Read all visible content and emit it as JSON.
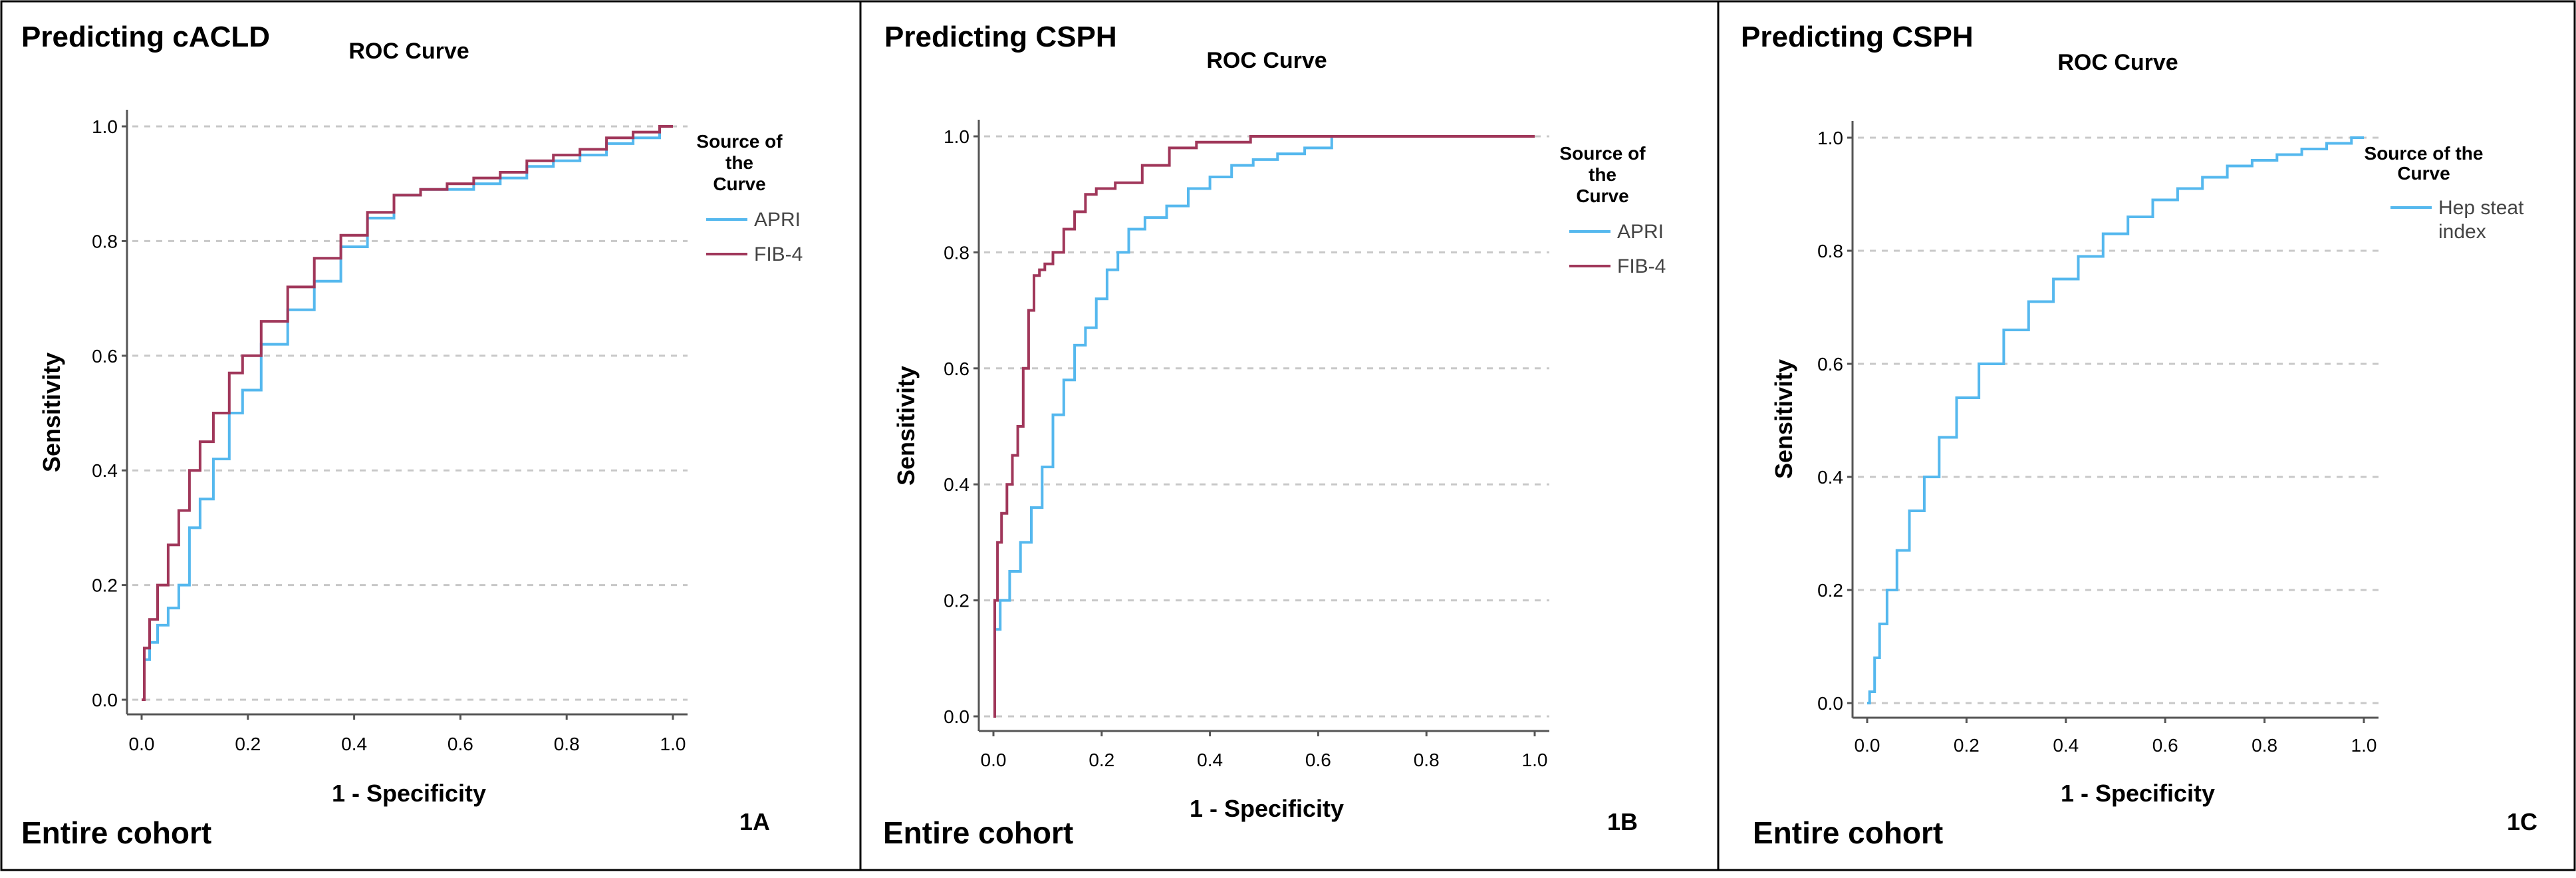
{
  "colors": {
    "apri": "#55b8ee",
    "fib4": "#a0375a",
    "hep": "#55b8ee",
    "grid": "#c8c8c8",
    "border": "#000000"
  },
  "panels": [
    {
      "heading": "Predicting cACLD",
      "footer": "Entire cohort",
      "panel_id": "1A"
    },
    {
      "heading": "Predicting CSPH",
      "footer": "Entire cohort",
      "panel_id": "1B"
    },
    {
      "heading": "Predicting CSPH",
      "footer": "Entire cohort",
      "panel_id": "1C"
    }
  ],
  "chart_data": [
    {
      "type": "line",
      "title": "ROC Curve",
      "xlabel": "1 - Specificity",
      "ylabel": "Sensitivity",
      "xlim": [
        0,
        1
      ],
      "ylim": [
        0,
        1
      ],
      "x_ticks": [
        "0.0",
        "0.2",
        "0.4",
        "0.6",
        "0.8",
        "1.0"
      ],
      "y_ticks": [
        "0.0",
        "0.2",
        "0.4",
        "0.6",
        "0.8",
        "1.0"
      ],
      "grid": "horizontal dashed",
      "legend_title": [
        "Source of",
        "the",
        "Curve"
      ],
      "legend_position": "right",
      "series": [
        {
          "name": "APRI",
          "color": "#55b8ee",
          "x": [
            0,
            0.01,
            0.02,
            0.04,
            0.06,
            0.08,
            0.1,
            0.12,
            0.15,
            0.18,
            0.2,
            0.25,
            0.3,
            0.35,
            0.4,
            0.45,
            0.5,
            0.55,
            0.6,
            0.65,
            0.7,
            0.75,
            0.8,
            0.85,
            0.9,
            0.95,
            1.0
          ],
          "y": [
            0,
            0.07,
            0.1,
            0.13,
            0.16,
            0.2,
            0.3,
            0.35,
            0.42,
            0.5,
            0.54,
            0.62,
            0.68,
            0.73,
            0.79,
            0.84,
            0.88,
            0.89,
            0.89,
            0.9,
            0.91,
            0.93,
            0.94,
            0.95,
            0.97,
            0.98,
            1.0
          ]
        },
        {
          "name": "FIB-4",
          "color": "#a0375a",
          "x": [
            0,
            0.01,
            0.02,
            0.04,
            0.06,
            0.08,
            0.1,
            0.12,
            0.15,
            0.18,
            0.2,
            0.25,
            0.3,
            0.35,
            0.4,
            0.45,
            0.5,
            0.55,
            0.6,
            0.65,
            0.7,
            0.75,
            0.8,
            0.85,
            0.9,
            0.95,
            1.0
          ],
          "y": [
            0,
            0.09,
            0.14,
            0.2,
            0.27,
            0.33,
            0.4,
            0.45,
            0.5,
            0.57,
            0.6,
            0.66,
            0.72,
            0.77,
            0.81,
            0.85,
            0.88,
            0.89,
            0.9,
            0.91,
            0.92,
            0.94,
            0.95,
            0.96,
            0.98,
            0.99,
            1.0
          ]
        }
      ]
    },
    {
      "type": "line",
      "title": "ROC Curve",
      "xlabel": "1 - Specificity",
      "ylabel": "Sensitivity",
      "xlim": [
        0,
        1
      ],
      "ylim": [
        0,
        1
      ],
      "x_ticks": [
        "0.0",
        "0.2",
        "0.4",
        "0.6",
        "0.8",
        "1.0"
      ],
      "y_ticks": [
        "0.0",
        "0.2",
        "0.4",
        "0.6",
        "0.8",
        "1.0"
      ],
      "grid": "horizontal dashed",
      "legend_title": [
        "Source of",
        "the",
        "Curve"
      ],
      "legend_position": "right",
      "series": [
        {
          "name": "APRI",
          "color": "#55b8ee",
          "x": [
            0,
            0.005,
            0.02,
            0.04,
            0.06,
            0.08,
            0.1,
            0.12,
            0.14,
            0.16,
            0.18,
            0.2,
            0.22,
            0.24,
            0.26,
            0.3,
            0.34,
            0.38,
            0.42,
            0.46,
            0.5,
            0.55,
            0.6,
            0.65,
            0.7,
            0.8,
            0.9,
            1.0
          ],
          "y": [
            0,
            0.15,
            0.2,
            0.25,
            0.3,
            0.36,
            0.43,
            0.52,
            0.58,
            0.64,
            0.67,
            0.72,
            0.77,
            0.8,
            0.84,
            0.86,
            0.88,
            0.91,
            0.93,
            0.95,
            0.96,
            0.97,
            0.98,
            1.0,
            1.0,
            1.0,
            1.0,
            1.0
          ]
        },
        {
          "name": "FIB-4",
          "color": "#a0375a",
          "x": [
            0,
            0.005,
            0.01,
            0.02,
            0.03,
            0.04,
            0.05,
            0.06,
            0.07,
            0.08,
            0.09,
            0.1,
            0.12,
            0.14,
            0.16,
            0.18,
            0.2,
            0.25,
            0.3,
            0.35,
            0.4,
            0.45,
            0.5,
            0.6,
            0.7,
            0.8,
            0.9,
            1.0
          ],
          "y": [
            0,
            0.2,
            0.3,
            0.35,
            0.4,
            0.45,
            0.5,
            0.6,
            0.7,
            0.76,
            0.77,
            0.78,
            0.8,
            0.84,
            0.87,
            0.9,
            0.91,
            0.92,
            0.95,
            0.98,
            0.99,
            0.99,
            1.0,
            1.0,
            1.0,
            1.0,
            1.0,
            1.0
          ]
        }
      ]
    },
    {
      "type": "line",
      "title": "ROC Curve",
      "xlabel": "1 - Specificity",
      "ylabel": "Sensitivity",
      "xlim": [
        0,
        1
      ],
      "ylim": [
        0,
        1
      ],
      "x_ticks": [
        "0.0",
        "0.2",
        "0.4",
        "0.6",
        "0.8",
        "1.0"
      ],
      "y_ticks": [
        "0.0",
        "0.2",
        "0.4",
        "0.6",
        "0.8",
        "1.0"
      ],
      "grid": "horizontal dashed",
      "legend_title": [
        "Source of the",
        "Curve"
      ],
      "legend_position": "right",
      "series": [
        {
          "name": "Hep steat index",
          "legend_lines": [
            "Hep steat",
            "index"
          ],
          "color": "#55b8ee",
          "x": [
            0,
            0.01,
            0.02,
            0.03,
            0.05,
            0.07,
            0.1,
            0.13,
            0.16,
            0.2,
            0.25,
            0.3,
            0.35,
            0.4,
            0.45,
            0.5,
            0.55,
            0.6,
            0.65,
            0.7,
            0.75,
            0.8,
            0.85,
            0.9,
            0.95,
            1.0
          ],
          "y": [
            0,
            0.02,
            0.08,
            0.14,
            0.2,
            0.27,
            0.34,
            0.4,
            0.47,
            0.54,
            0.6,
            0.66,
            0.71,
            0.75,
            0.79,
            0.83,
            0.86,
            0.89,
            0.91,
            0.93,
            0.95,
            0.96,
            0.97,
            0.98,
            0.99,
            1.0
          ]
        }
      ]
    }
  ]
}
